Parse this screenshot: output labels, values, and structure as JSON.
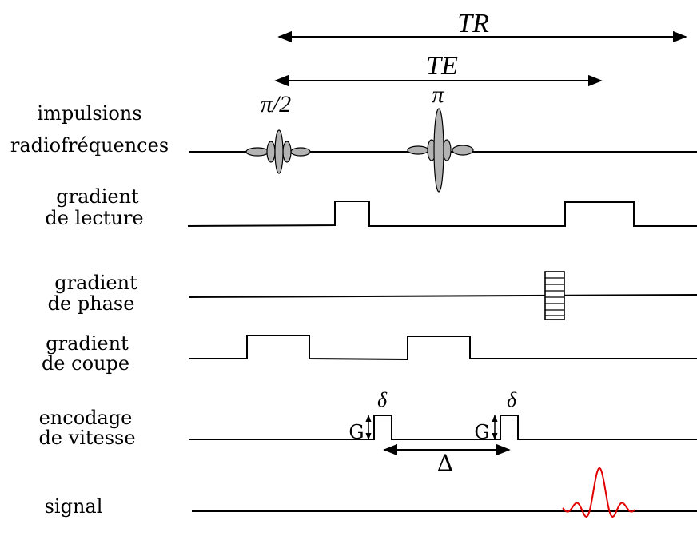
{
  "timing": {
    "tr_label": "TR",
    "te_label": "TE"
  },
  "rows": {
    "rf": {
      "line1": "impulsions",
      "line2": "radiofréquences",
      "pulse90_label": "π/2",
      "pulse180_label": "π"
    },
    "readout": {
      "line1": "gradient",
      "line2": "de lecture"
    },
    "phase": {
      "line1": "gradient",
      "line2": "de phase"
    },
    "slice": {
      "line1": "gradient",
      "line2": "de coupe"
    },
    "velocity": {
      "line1": "encodage",
      "line2": "de vitesse",
      "g_label": "G",
      "delta_small": "δ",
      "delta_big": "Δ"
    },
    "signal": {
      "label": "signal"
    }
  },
  "colors": {
    "pulse_fill": "#b3b3b3",
    "signal": "#e00000",
    "line": "#000000"
  }
}
